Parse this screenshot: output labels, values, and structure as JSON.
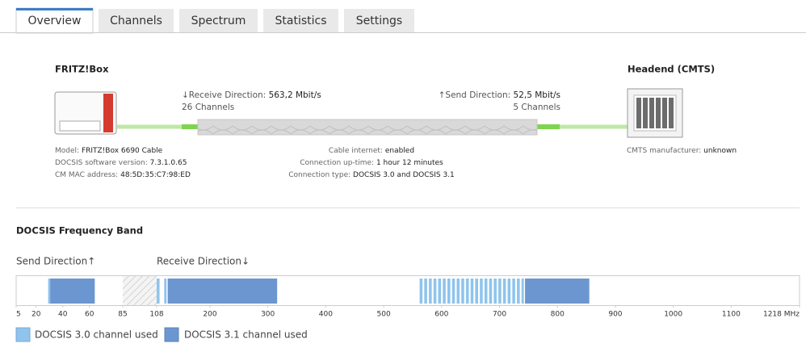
{
  "tabs": [
    "Overview",
    "Channels",
    "Spectrum",
    "Statistics",
    "Settings"
  ],
  "diagram": {
    "fritzbox_title": "FRITZ!Box",
    "headend_title": "Headend (CMTS)",
    "receive_direction": {
      "label": "↓Receive Direction:",
      "value": "563,2 Mbit/s",
      "channels": "26 Channels"
    },
    "send_direction": {
      "label": "↑Send Direction:",
      "value": "52,5 Mbit/s",
      "channels": "5 Channels"
    },
    "fritzbox_info": [
      [
        "Model:",
        "FRITZ!Box 6690 Cable"
      ],
      [
        "DOCSIS software version:",
        "7.3.1.0.65"
      ],
      [
        "CM MAC address:",
        "48:5D:35:C7:98:ED"
      ]
    ],
    "connection_info": [
      [
        "Cable internet:",
        "enabled"
      ],
      [
        "Connection up-time:",
        "1 hour 12 minutes"
      ],
      [
        "Connection type:",
        "DOCSIS 3.0 and DOCSIS 3.1"
      ]
    ],
    "cmts_info": [
      "CMTS manufacturer:",
      "unknown"
    ]
  },
  "frequency_band": {
    "title": "DOCSIS Frequency Band",
    "send_label": "Send Direction↑",
    "receive_label": "Receive Direction↓",
    "send_range": [
      5,
      85
    ],
    "receive_range": [
      108,
      1218
    ],
    "ticks": [
      5,
      20,
      40,
      60,
      85,
      108,
      200,
      300,
      400,
      500,
      600,
      700,
      800,
      900,
      1000,
      1100,
      {
        "value": 1218,
        "label": "1218 MHz"
      }
    ],
    "docsis30_color": "#8fc4ec",
    "docsis31_color": "#6b96d0",
    "docsis30_channels": [
      [
        29,
        30.5
      ],
      [
        108,
        113
      ],
      [
        121,
        125
      ],
      [
        562,
        567
      ],
      [
        570,
        575
      ],
      [
        578,
        583
      ],
      [
        586,
        591
      ],
      [
        594,
        599
      ],
      [
        602,
        607
      ],
      [
        610,
        615
      ],
      [
        618,
        623
      ],
      [
        626,
        631
      ],
      [
        634,
        639
      ],
      [
        642,
        647
      ],
      [
        650,
        655
      ],
      [
        658,
        663
      ],
      [
        666,
        671
      ],
      [
        674,
        679
      ],
      [
        682,
        687
      ],
      [
        690,
        695
      ],
      [
        698,
        703
      ],
      [
        706,
        711
      ],
      [
        714,
        719
      ],
      [
        722,
        727
      ],
      [
        730,
        735
      ],
      [
        738,
        742
      ]
    ],
    "docsis31_channels": [
      [
        30.5,
        64
      ],
      [
        127,
        316
      ],
      [
        744,
        855
      ]
    ],
    "legend": {
      "docsis30": "DOCSIS 3.0 channel used",
      "docsis31": "DOCSIS 3.1 channel used"
    }
  }
}
